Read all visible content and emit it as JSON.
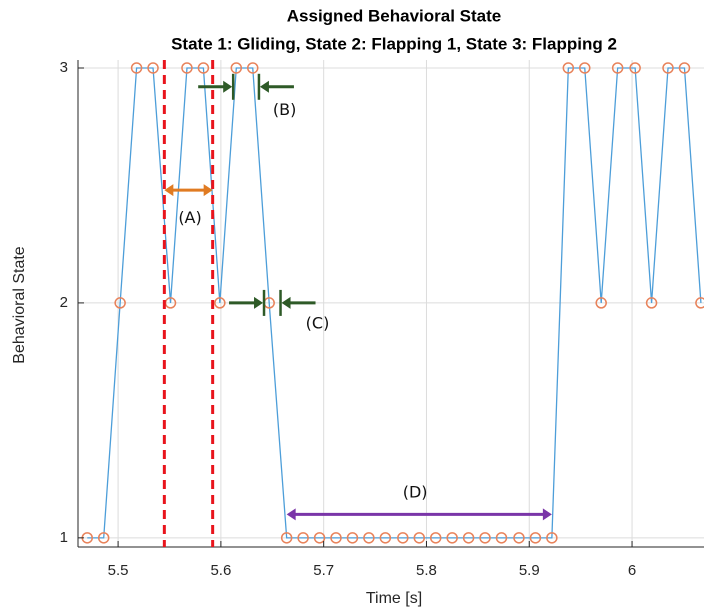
{
  "chart_data": {
    "type": "line",
    "title": "Assigned Behavioral State",
    "subtitle": "State 1: Gliding, State 2: Flapping 1, State 3: Flapping 2",
    "xlabel": "Time [s]",
    "ylabel": "Behavioral State",
    "x": [
      5.47,
      5.486,
      5.502,
      5.518,
      5.534,
      5.551,
      5.567,
      5.583,
      5.599,
      5.615,
      5.631,
      5.647,
      5.664,
      5.68,
      5.696,
      5.712,
      5.728,
      5.744,
      5.76,
      5.777,
      5.793,
      5.809,
      5.825,
      5.841,
      5.857,
      5.873,
      5.89,
      5.906,
      5.922,
      5.938,
      5.954,
      5.97,
      5.986,
      6.003,
      6.019,
      6.035,
      6.051,
      6.067
    ],
    "series": [
      {
        "color": "#4d9ed9",
        "marker_color": "#e8825a",
        "values": [
          1,
          1,
          2,
          3,
          3,
          2,
          3,
          3,
          2,
          3,
          3,
          2,
          1,
          1,
          1,
          1,
          1,
          1,
          1,
          1,
          1,
          1,
          1,
          1,
          1,
          1,
          1,
          1,
          1,
          3,
          3,
          2,
          3,
          3,
          2,
          3,
          3,
          2
        ]
      }
    ],
    "xlim": [
      5.461,
      6.07
    ],
    "ylim": [
      0.961,
      3.034
    ],
    "xticks": [
      5.5,
      5.6,
      5.7,
      5.8,
      5.9,
      6
    ],
    "yticks": [
      1,
      2,
      3
    ],
    "grid": true,
    "vlines": {
      "color": "#e8141c",
      "x": [
        5.545,
        5.592
      ]
    },
    "annotations": [
      {
        "kind": "span",
        "label": "(A)",
        "x": [
          5.545,
          5.592
        ],
        "y": 2.48,
        "label_x": 5.57,
        "label_y": 2.36,
        "color": "#e07b22"
      },
      {
        "kind": "gap",
        "label": "(B)",
        "x": [
          5.611,
          5.638
        ],
        "y": 2.92,
        "label_x": 5.662,
        "label_y": 2.82,
        "color": "#2e5a27"
      },
      {
        "kind": "gap",
        "label": "(C)",
        "x": [
          5.641,
          5.659
        ],
        "y": 2.0,
        "label_x": 5.694,
        "label_y": 1.91,
        "color": "#2e5a27"
      },
      {
        "kind": "span",
        "label": "(D)",
        "x": [
          5.664,
          5.922
        ],
        "y": 1.1,
        "label_x": 5.789,
        "label_y": 1.19,
        "color": "#7a35a8"
      }
    ]
  }
}
